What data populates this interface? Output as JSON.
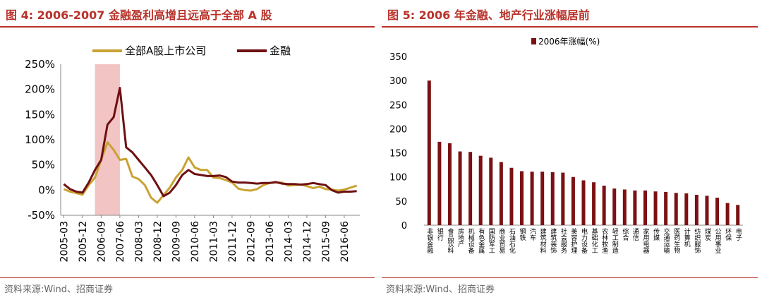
{
  "left": {
    "title": "图 4:  2006-2007 金融盈利高增且远高于全部 A 股",
    "source": "资料来源:Wind、招商证券",
    "chart_data": {
      "type": "line",
      "x": [
        "2005-03",
        "2005-06",
        "2005-09",
        "2005-12",
        "2006-03",
        "2006-06",
        "2006-09",
        "2006-12",
        "2007-03",
        "2007-06",
        "2007-09",
        "2007-12",
        "2008-03",
        "2008-06",
        "2008-09",
        "2008-12",
        "2009-03",
        "2009-06",
        "2009-09",
        "2009-12",
        "2010-03",
        "2010-06",
        "2010-09",
        "2010-12",
        "2011-03",
        "2011-06",
        "2011-09",
        "2011-12",
        "2012-03",
        "2012-06",
        "2012-09",
        "2012-12",
        "2013-03",
        "2013-06",
        "2013-09",
        "2013-12",
        "2014-03",
        "2014-06",
        "2014-09",
        "2014-12",
        "2015-03",
        "2015-06",
        "2015-09",
        "2015-12",
        "2016-03",
        "2016-06",
        "2016-09",
        "2016-12"
      ],
      "tick_labels": [
        "2005-03",
        "2005-12",
        "2006-09",
        "2007-06",
        "2008-03",
        "2008-12",
        "2009-09",
        "2010-06",
        "2011-03",
        "2011-12",
        "2012-09",
        "2013-06",
        "2014-03",
        "2014-12",
        "2015-09",
        "2016-06"
      ],
      "series": [
        {
          "name": "全部A股上市公司",
          "color": "#c9a233",
          "values": [
            2,
            -3,
            -6,
            -9,
            10,
            25,
            60,
            95,
            80,
            60,
            62,
            27,
            22,
            10,
            -15,
            -25,
            -10,
            5,
            25,
            40,
            65,
            45,
            40,
            40,
            25,
            24,
            20,
            15,
            3,
            0,
            -1,
            2,
            10,
            14,
            15,
            15,
            9,
            10,
            11,
            8,
            4,
            7,
            2,
            1,
            -1,
            1,
            5,
            9
          ]
        },
        {
          "name": "金融",
          "color": "#6e0f12",
          "values": [
            12,
            2,
            -3,
            -5,
            15,
            40,
            60,
            130,
            145,
            203,
            85,
            75,
            60,
            45,
            30,
            10,
            -12,
            -5,
            10,
            30,
            40,
            32,
            30,
            28,
            28,
            29,
            26,
            17,
            15,
            15,
            14,
            13,
            14,
            14,
            16,
            13,
            12,
            12,
            11,
            12,
            14,
            12,
            10,
            0,
            -5,
            -3,
            -3,
            -2
          ]
        }
      ],
      "ylim": [
        -50,
        250
      ],
      "yticks": [
        "250%",
        "200%",
        "150%",
        "100%",
        "50%",
        "0%",
        "-50%"
      ],
      "highlight": {
        "from": "2006-06",
        "to": "2007-06",
        "color": "#f2c4c4"
      },
      "legend_position": "top"
    }
  },
  "right": {
    "title": "图 5:  2006 年金融、地产行业涨幅居前",
    "source": "资料来源:Wind、招商证券",
    "chart_data": {
      "type": "bar",
      "series_name": "2006年涨幅(%)",
      "color": "#7b1113",
      "categories": [
        "非银金融",
        "银行",
        "食品饮料",
        "房地产",
        "机械设备",
        "有色金属",
        "国防军工",
        "商业贸易",
        "石油石化",
        "钢铁",
        "汽车",
        "建筑材料",
        "建筑装饰",
        "社会服务",
        "美容护理",
        "电力设备",
        "基础化工",
        "农林牧渔",
        "轻工制造",
        "综合",
        "通信",
        "家用电器",
        "传媒",
        "交通运输",
        "医药生物",
        "计算机",
        "纺织服饰",
        "煤炭",
        "公用事业",
        "环保",
        "电子"
      ],
      "values": [
        300,
        173,
        170,
        153,
        152,
        144,
        140,
        131,
        119,
        112,
        111,
        111,
        110,
        109,
        100,
        93,
        89,
        82,
        76,
        74,
        72,
        72,
        70,
        69,
        67,
        66,
        63,
        61,
        57,
        46,
        42
      ],
      "ylim": [
        0,
        350
      ],
      "yticks": [
        "0",
        "50",
        "100",
        "150",
        "200",
        "250",
        "300",
        "350"
      ],
      "legend_position": "top-center"
    }
  }
}
